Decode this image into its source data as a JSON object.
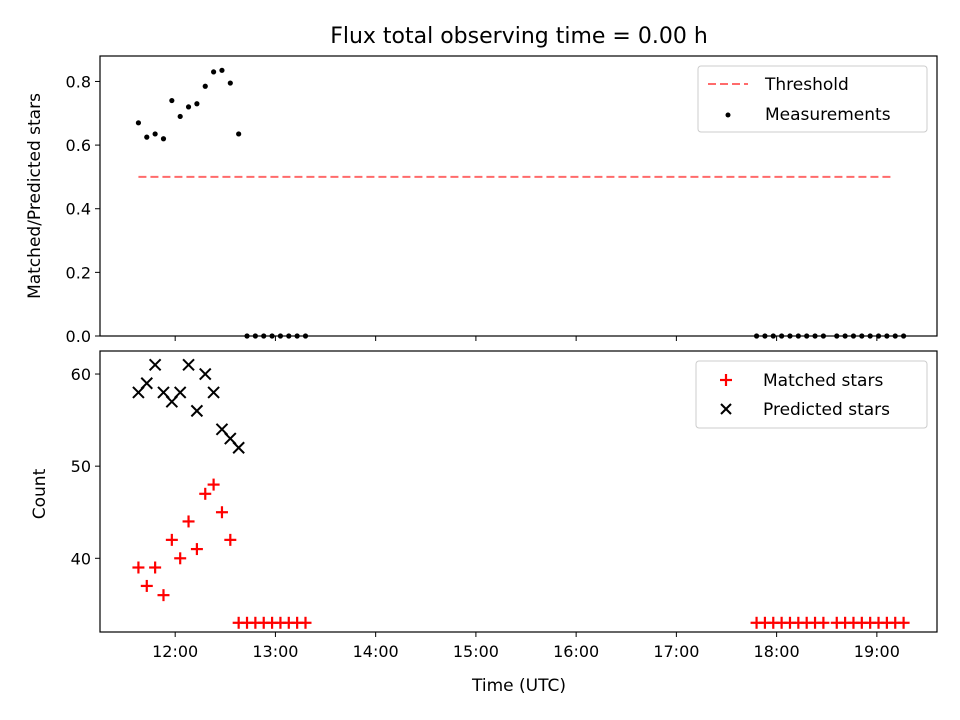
{
  "figure": {
    "title": "Flux total observing time = 0.00 h",
    "xlabel": "Time (UTC)"
  },
  "colors": {
    "threshold": "#ff6b6b",
    "measurements": "#000000",
    "matched": "#ff0000",
    "predicted": "#000000"
  },
  "chart_data": [
    {
      "type": "scatter",
      "ylabel": "Matched/Predicted stars",
      "xlim": [
        "11:15",
        "19:36"
      ],
      "ylim": [
        0,
        0.88
      ],
      "y_ticks": [
        "0.0",
        "0.2",
        "0.4",
        "0.6",
        "0.8"
      ],
      "x_ticks": [
        "12:00",
        "13:00",
        "14:00",
        "15:00",
        "16:00",
        "17:00",
        "18:00",
        "19:00"
      ],
      "legend": {
        "placement": "top-right",
        "entries": [
          "Threshold",
          "Measurements"
        ]
      },
      "series": [
        {
          "name": "Threshold",
          "style": "dashed-line",
          "x": [
            "11:38",
            "19:10"
          ],
          "y": [
            0.5,
            0.5
          ]
        },
        {
          "name": "Measurements",
          "style": "dot",
          "x": [
            "11:38",
            "11:43",
            "11:48",
            "11:53",
            "11:58",
            "12:03",
            "12:08",
            "12:13",
            "12:18",
            "12:23",
            "12:28",
            "12:33",
            "12:38",
            "12:43",
            "12:48",
            "12:53",
            "12:58",
            "13:03",
            "13:08",
            "13:13",
            "13:18",
            "17:48",
            "17:53",
            "17:58",
            "18:03",
            "18:08",
            "18:13",
            "18:18",
            "18:23",
            "18:28",
            "18:36",
            "18:41",
            "18:46",
            "18:51",
            "18:56",
            "19:01",
            "19:06",
            "19:11",
            "19:16"
          ],
          "y": [
            0.67,
            0.625,
            0.635,
            0.62,
            0.74,
            0.69,
            0.72,
            0.73,
            0.785,
            0.83,
            0.835,
            0.795,
            0.635,
            0,
            0,
            0,
            0,
            0,
            0,
            0,
            0,
            0,
            0,
            0,
            0,
            0,
            0,
            0,
            0,
            0,
            0,
            0,
            0,
            0,
            0,
            0,
            0,
            0,
            0
          ]
        }
      ]
    },
    {
      "type": "scatter",
      "ylabel": "Count",
      "xlabel": "Time (UTC)",
      "xlim": [
        "11:15",
        "19:36"
      ],
      "ylim": [
        32,
        62.5
      ],
      "y_ticks": [
        "40",
        "50",
        "60"
      ],
      "x_ticks": [
        "12:00",
        "13:00",
        "14:00",
        "15:00",
        "16:00",
        "17:00",
        "18:00",
        "19:00"
      ],
      "legend": {
        "placement": "top-right",
        "entries": [
          "Matched stars",
          "Predicted stars"
        ]
      },
      "series": [
        {
          "name": "Matched stars",
          "marker": "plus",
          "x": [
            "11:38",
            "11:43",
            "11:48",
            "11:53",
            "11:58",
            "12:03",
            "12:08",
            "12:13",
            "12:18",
            "12:23",
            "12:28",
            "12:33",
            "12:38",
            "12:43",
            "12:48",
            "12:53",
            "12:58",
            "13:03",
            "13:08",
            "13:13",
            "13:18",
            "17:48",
            "17:53",
            "17:58",
            "18:03",
            "18:08",
            "18:13",
            "18:18",
            "18:23",
            "18:28",
            "18:36",
            "18:41",
            "18:46",
            "18:51",
            "18:56",
            "19:01",
            "19:06",
            "19:11",
            "19:16"
          ],
          "y": [
            39,
            37,
            39,
            36,
            42,
            40,
            44,
            41,
            47,
            48,
            45,
            42,
            33,
            33,
            33,
            33,
            33,
            33,
            33,
            33,
            33,
            33,
            33,
            33,
            33,
            33,
            33,
            33,
            33,
            33,
            33,
            33,
            33,
            33,
            33,
            33,
            33,
            33,
            33
          ]
        },
        {
          "name": "Predicted stars",
          "marker": "cross",
          "x": [
            "11:38",
            "11:43",
            "11:48",
            "11:53",
            "11:58",
            "12:03",
            "12:08",
            "12:13",
            "12:18",
            "12:23",
            "12:28",
            "12:33",
            "12:38"
          ],
          "y": [
            58,
            59,
            61,
            58,
            57,
            58,
            61,
            56,
            60,
            58,
            54,
            53,
            52
          ]
        }
      ]
    }
  ]
}
